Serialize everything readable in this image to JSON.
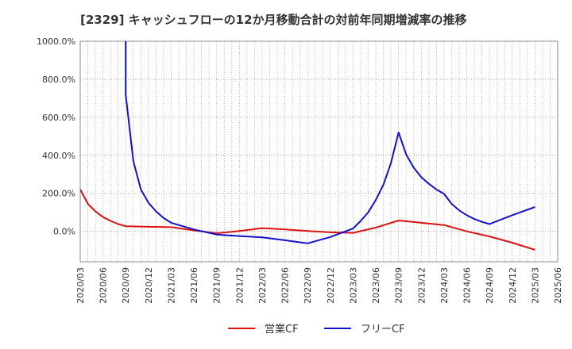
{
  "chart_data": {
    "type": "line",
    "title": "[2329]  キャッシュフローの12か月移動合計の対前年同期増減率の推移",
    "xlabel": "",
    "ylabel": "",
    "ylim": [
      -160,
      1000
    ],
    "yticks": [
      0,
      200,
      400,
      600,
      800,
      1000
    ],
    "ytick_labels": [
      "0.0%",
      "200.0%",
      "400.0%",
      "600.0%",
      "800.0%",
      "1000.0%"
    ],
    "x_start_month": "2020/03",
    "x_end_month": "2025/06",
    "xtick_labels": [
      "2020/03",
      "2020/06",
      "2020/09",
      "2020/12",
      "2021/03",
      "2021/06",
      "2021/09",
      "2021/12",
      "2022/03",
      "2022/06",
      "2022/09",
      "2022/12",
      "2023/03",
      "2023/06",
      "2023/09",
      "2023/12",
      "2024/03",
      "2024/06",
      "2024/09",
      "2024/12",
      "2025/03",
      "2025/06"
    ],
    "grid": true,
    "legend_position": "bottom",
    "series": [
      {
        "name": "営業CF",
        "color": "#dd1111",
        "points": [
          [
            "2020/03",
            220
          ],
          [
            "2020/04",
            145
          ],
          [
            "2020/05",
            105
          ],
          [
            "2020/06",
            75
          ],
          [
            "2020/07",
            55
          ],
          [
            "2020/08",
            38
          ],
          [
            "2020/09",
            27
          ],
          [
            "2020/12",
            24
          ],
          [
            "2021/03",
            22
          ],
          [
            "2021/06",
            5
          ],
          [
            "2021/09",
            -10
          ],
          [
            "2021/12",
            2
          ],
          [
            "2022/03",
            17
          ],
          [
            "2022/06",
            10
          ],
          [
            "2022/09",
            2
          ],
          [
            "2022/12",
            -5
          ],
          [
            "2023/03",
            -8
          ],
          [
            "2023/06",
            20
          ],
          [
            "2023/09",
            57
          ],
          [
            "2023/12",
            45
          ],
          [
            "2024/03",
            33
          ],
          [
            "2024/06",
            0
          ],
          [
            "2024/09",
            -27
          ],
          [
            "2024/12",
            -60
          ],
          [
            "2025/03",
            -97
          ]
        ]
      },
      {
        "name": "フリーCF",
        "color": "#1111cc",
        "points": [
          [
            "2020/09",
            1000
          ],
          [
            "2020/09",
            720
          ],
          [
            "2020/10",
            370
          ],
          [
            "2020/11",
            220
          ],
          [
            "2020/12",
            150
          ],
          [
            "2021/01",
            105
          ],
          [
            "2021/02",
            70
          ],
          [
            "2021/03",
            45
          ],
          [
            "2021/06",
            10
          ],
          [
            "2021/09",
            -17
          ],
          [
            "2021/12",
            -25
          ],
          [
            "2022/03",
            -32
          ],
          [
            "2022/06",
            -47
          ],
          [
            "2022/09",
            -63
          ],
          [
            "2022/12",
            -30
          ],
          [
            "2023/03",
            15
          ],
          [
            "2023/04",
            55
          ],
          [
            "2023/05",
            100
          ],
          [
            "2023/06",
            165
          ],
          [
            "2023/07",
            245
          ],
          [
            "2023/08",
            360
          ],
          [
            "2023/09",
            520
          ],
          [
            "2023/10",
            405
          ],
          [
            "2023/11",
            335
          ],
          [
            "2023/12",
            285
          ],
          [
            "2024/01",
            250
          ],
          [
            "2024/02",
            220
          ],
          [
            "2024/03",
            197
          ],
          [
            "2024/04",
            145
          ],
          [
            "2024/05",
            110
          ],
          [
            "2024/06",
            85
          ],
          [
            "2024/07",
            65
          ],
          [
            "2024/08",
            50
          ],
          [
            "2024/09",
            38
          ],
          [
            "2024/12",
            85
          ],
          [
            "2025/03",
            128
          ]
        ]
      }
    ]
  }
}
